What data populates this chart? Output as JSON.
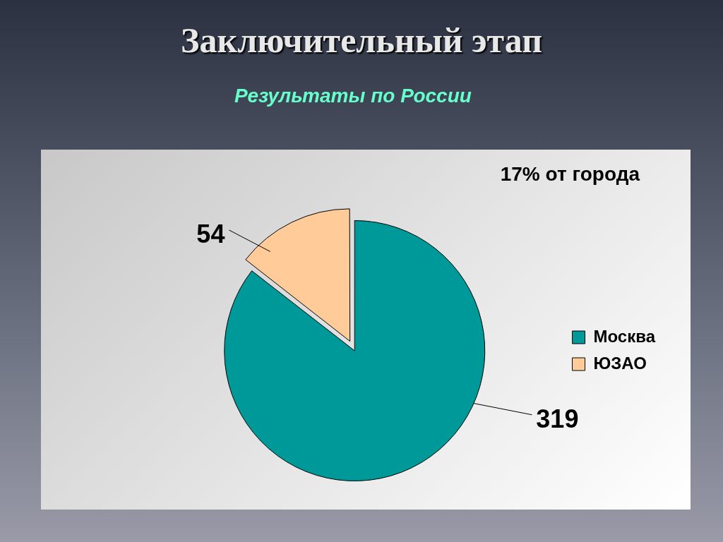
{
  "chart_data": {
    "type": "pie",
    "title": "Заключительный этап",
    "subtitle": "Результаты  по России",
    "categories": [
      "Москва",
      "ЮЗАО"
    ],
    "values": [
      319,
      54
    ],
    "colors": [
      "#009999",
      "#ffcc99"
    ],
    "data_labels": true,
    "legend": "right",
    "annotations": [
      "17% от города"
    ]
  }
}
